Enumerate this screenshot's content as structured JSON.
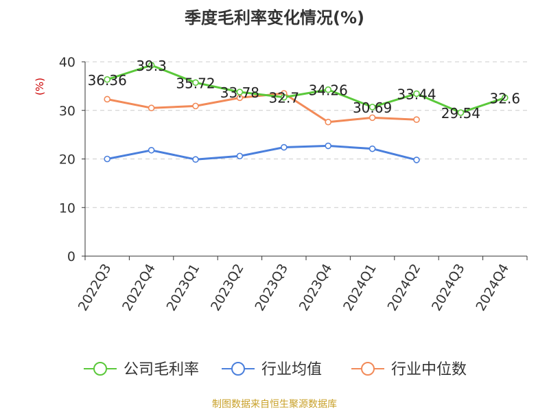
{
  "chart_data": {
    "type": "line",
    "title": "季度毛利率变化情况(%)",
    "ylabel": "(%)",
    "ylim": [
      0,
      40
    ],
    "yticks": [
      0,
      10,
      20,
      30,
      40
    ],
    "categories": [
      "2022Q3",
      "2022Q4",
      "2023Q1",
      "2023Q2",
      "2023Q3",
      "2023Q4",
      "2024Q1",
      "2024Q2",
      "2024Q3",
      "2024Q4"
    ],
    "grid": true,
    "legend_position": "bottom",
    "series": [
      {
        "name": "公司毛利率",
        "color": "#5ac83a",
        "labeled": true,
        "values": [
          36.36,
          39.3,
          35.72,
          33.78,
          32.7,
          34.26,
          30.69,
          33.44,
          29.54,
          32.6
        ],
        "labels": [
          "36.36",
          "39.3",
          "35.72",
          "33.78",
          "32.7",
          "34.26",
          "30.69",
          "33.44",
          "29.54",
          "32.6"
        ]
      },
      {
        "name": "行业均值",
        "color": "#4a7fdc",
        "labeled": false,
        "values": [
          20.0,
          21.8,
          19.9,
          20.6,
          22.4,
          22.7,
          22.1,
          19.8,
          null,
          null
        ]
      },
      {
        "name": "行业中位数",
        "color": "#f28a58",
        "labeled": false,
        "values": [
          32.3,
          30.5,
          30.9,
          32.6,
          33.5,
          27.6,
          28.5,
          28.1,
          null,
          null
        ]
      }
    ]
  },
  "source": "制图数据来自恒生聚源数据库"
}
